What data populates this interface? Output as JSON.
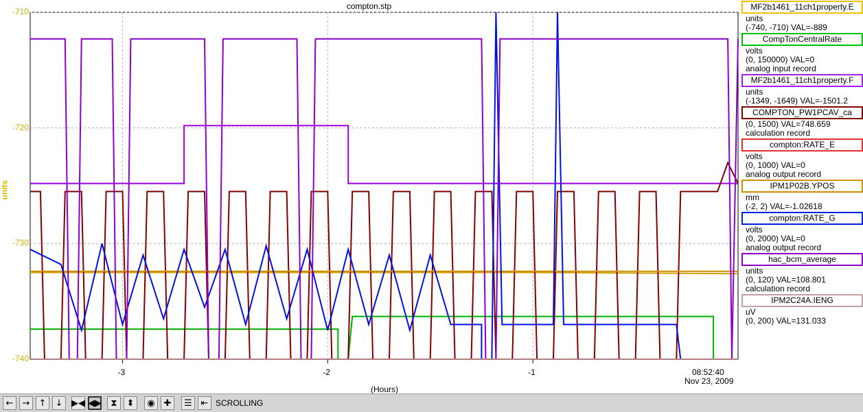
{
  "chart_data": {
    "type": "line",
    "title": "compton.stp",
    "ylabel": "units",
    "xlabel": "(Hours)",
    "xlim": [
      -3.45,
      0.0
    ],
    "ylim": [
      -740,
      -710
    ],
    "yticks": [
      "-710",
      "-720",
      "-730",
      "-740"
    ],
    "xticks": [
      "-3",
      "-2",
      "-1"
    ],
    "grid": true,
    "time_label": "08:52:40",
    "date_label": "Nov 23, 2009",
    "series": [
      {
        "name": "MF2b1461_11ch1property.E",
        "color": "#d4a000",
        "unit": "units",
        "range": "(-740, -710) VAL=-889",
        "points": [
          [
            -3.45,
            -732.5
          ],
          [
            -1.0,
            -732.5
          ],
          [
            0.0,
            -732.6
          ]
        ]
      },
      {
        "name": "CompTonCentralRate",
        "color": "#00b000",
        "unit": "volts",
        "range": "(0, 150000) VAL=0",
        "points": [
          [
            -3.45,
            -737.4
          ],
          [
            -1.95,
            -737.4
          ],
          [
            -1.95,
            -740
          ],
          [
            -1.9,
            -740
          ],
          [
            -1.88,
            -736.3
          ],
          [
            -0.12,
            -736.3
          ],
          [
            -0.12,
            -740
          ],
          [
            0.0,
            -740
          ]
        ]
      },
      {
        "name": "MF2b1461_11ch1property.F",
        "color": "#9a00e0",
        "unit": "units",
        "range": "(-1349, -1649) VAL=-1501.2",
        "points": [
          [
            -3.45,
            -724.8
          ],
          [
            -2.7,
            -724.8
          ],
          [
            -2.7,
            -719.8
          ],
          [
            -1.9,
            -719.8
          ],
          [
            -1.9,
            -724.8
          ],
          [
            0.0,
            -724.8
          ]
        ]
      },
      {
        "name": "COMPTON_PW1PCAV_ca",
        "color": "#800000",
        "unit": "",
        "range": "(0, 1500) VAL=748.659",
        "points": [
          [
            -3.45,
            -725.5
          ],
          [
            -3.4,
            -725.5
          ],
          [
            -3.38,
            -740
          ],
          [
            -3.3,
            -740
          ],
          [
            -3.28,
            -725.5
          ],
          [
            -3.2,
            -725.5
          ],
          [
            -3.18,
            -740
          ],
          [
            -3.1,
            -740
          ],
          [
            -3.08,
            -725.5
          ],
          [
            -3.0,
            -725.5
          ],
          [
            -2.98,
            -740
          ],
          [
            -2.9,
            -740
          ],
          [
            -2.88,
            -725.5
          ],
          [
            -2.8,
            -725.5
          ],
          [
            -2.78,
            -740
          ],
          [
            -2.7,
            -740
          ],
          [
            -2.68,
            -725.5
          ],
          [
            -2.6,
            -725.5
          ],
          [
            -2.58,
            -740
          ],
          [
            -2.5,
            -740
          ],
          [
            -2.48,
            -725.5
          ],
          [
            -2.4,
            -725.5
          ],
          [
            -2.38,
            -740
          ],
          [
            -2.3,
            -740
          ],
          [
            -2.28,
            -725.5
          ],
          [
            -2.2,
            -725.5
          ],
          [
            -2.18,
            -740
          ],
          [
            -2.1,
            -740
          ],
          [
            -2.08,
            -725.5
          ],
          [
            -2.0,
            -725.5
          ],
          [
            -1.98,
            -740
          ],
          [
            -1.9,
            -740
          ],
          [
            -1.88,
            -725.5
          ],
          [
            -1.8,
            -725.5
          ],
          [
            -1.78,
            -740
          ],
          [
            -1.7,
            -740
          ],
          [
            -1.68,
            -725.5
          ],
          [
            -1.6,
            -725.5
          ],
          [
            -1.58,
            -740
          ],
          [
            -1.5,
            -740
          ],
          [
            -1.48,
            -725.5
          ],
          [
            -1.4,
            -725.5
          ],
          [
            -1.38,
            -740
          ],
          [
            -1.3,
            -740
          ],
          [
            -1.28,
            -725.5
          ],
          [
            -1.2,
            -725.5
          ],
          [
            -1.18,
            -740
          ],
          [
            -1.1,
            -740
          ],
          [
            -1.08,
            -725.5
          ],
          [
            -1.0,
            -725.5
          ],
          [
            -0.98,
            -740
          ],
          [
            -0.9,
            -740
          ],
          [
            -0.88,
            -725.5
          ],
          [
            -0.8,
            -725.5
          ],
          [
            -0.78,
            -740
          ],
          [
            -0.7,
            -740
          ],
          [
            -0.68,
            -725.5
          ],
          [
            -0.6,
            -725.5
          ],
          [
            -0.58,
            -740
          ],
          [
            -0.5,
            -740
          ],
          [
            -0.48,
            -725.5
          ],
          [
            -0.4,
            -725.5
          ],
          [
            -0.38,
            -740
          ],
          [
            -0.3,
            -740
          ],
          [
            -0.28,
            -725.5
          ],
          [
            -0.25,
            -725.5
          ],
          [
            -0.1,
            -725.5
          ],
          [
            -0.05,
            -723.0
          ],
          [
            0.0,
            -724.8
          ]
        ]
      },
      {
        "name": "compton:RATE_E",
        "color": "#e02020",
        "unit": "volts",
        "range": "(0, 1000) VAL=0",
        "points": [
          [
            -3.45,
            -740
          ],
          [
            0.0,
            -740
          ]
        ]
      },
      {
        "name": "IPM1P02B.YPOS",
        "color": "#c89000",
        "unit": "mm",
        "range": "(-2, 2) VAL=-1.02618",
        "points": [
          [
            -3.45,
            -732.4
          ],
          [
            -1.0,
            -732.4
          ],
          [
            0.0,
            -732.4
          ]
        ]
      },
      {
        "name": "compton:RATE_G",
        "color": "#0010e0",
        "unit": "volts",
        "range": "(0, 2000) VAL=0",
        "points": [
          [
            -3.45,
            -730.5
          ],
          [
            -3.3,
            -731.8
          ],
          [
            -3.2,
            -737.5
          ],
          [
            -3.1,
            -730.0
          ],
          [
            -3.0,
            -737.0
          ],
          [
            -2.9,
            -731.0
          ],
          [
            -2.8,
            -736.5
          ],
          [
            -2.7,
            -730.5
          ],
          [
            -2.6,
            -735.5
          ],
          [
            -2.5,
            -730.5
          ],
          [
            -2.4,
            -737.0
          ],
          [
            -2.3,
            -730.2
          ],
          [
            -2.2,
            -736.5
          ],
          [
            -2.1,
            -730.5
          ],
          [
            -2.0,
            -737.5
          ],
          [
            -1.9,
            -730.5
          ],
          [
            -1.8,
            -737.0
          ],
          [
            -1.7,
            -731.0
          ],
          [
            -1.6,
            -737.5
          ],
          [
            -1.5,
            -731.0
          ],
          [
            -1.4,
            -737.0
          ],
          [
            -1.35,
            -737.0
          ],
          [
            -1.25,
            -737.0
          ],
          [
            -1.25,
            -740
          ],
          [
            -1.2,
            -740
          ],
          [
            -1.18,
            -710
          ],
          [
            -1.15,
            -737.0
          ],
          [
            -0.9,
            -737.0
          ],
          [
            -0.88,
            -710
          ],
          [
            -0.85,
            -737.0
          ],
          [
            -0.3,
            -737.0
          ],
          [
            -0.28,
            -740
          ],
          [
            0.0,
            -740
          ]
        ]
      },
      {
        "name": "hac_bcm_average",
        "color": "#8a00c8",
        "unit": "units",
        "range": "(0, 120) VAL=108.801",
        "extra": "calculation record",
        "points": [
          [
            -3.45,
            -712.3
          ],
          [
            -3.28,
            -712.3
          ],
          [
            -3.26,
            -740
          ],
          [
            -3.22,
            -740
          ],
          [
            -3.2,
            -712.3
          ],
          [
            -3.05,
            -712.3
          ],
          [
            -3.03,
            -740
          ],
          [
            -2.98,
            -740
          ],
          [
            -2.96,
            -712.3
          ],
          [
            -2.6,
            -712.3
          ],
          [
            -2.58,
            -740
          ],
          [
            -2.53,
            -740
          ],
          [
            -2.51,
            -712.3
          ],
          [
            -2.15,
            -712.3
          ],
          [
            -2.13,
            -740
          ],
          [
            -2.08,
            -740
          ],
          [
            -2.06,
            -712.3
          ],
          [
            -1.25,
            -712.3
          ],
          [
            -1.23,
            -740
          ],
          [
            -1.18,
            -740
          ],
          [
            -1.16,
            -712.3
          ],
          [
            -0.05,
            -712.3
          ],
          [
            -0.03,
            -740
          ],
          [
            0.0,
            -712.3
          ]
        ]
      },
      {
        "name": "IPM2C24A.IENG",
        "color": "#b08080",
        "unit": "uV",
        "range": "(0, 200) VAL=131.033",
        "points": [
          [
            -3.45,
            -740
          ],
          [
            0.0,
            -740
          ]
        ]
      }
    ]
  },
  "legend": [
    {
      "name": "MF2b1461_11ch1property.E",
      "color": "#f0c000",
      "lines": [
        "units",
        "(-740, -710) VAL=-889"
      ]
    },
    {
      "name": "CompTonCentralRate",
      "color": "#00c000",
      "lines": [
        "volts",
        "(0, 150000) VAL=0",
        "analog input record"
      ]
    },
    {
      "name": "MF2b1461_11ch1property.F",
      "color": "#a020f0",
      "lines": [
        "units",
        "(-1349, -1649) VAL=-1501.2"
      ]
    },
    {
      "name": "COMPTON_PW1PCAV_ca",
      "color": "#800000",
      "lines": [
        "(0, 1500) VAL=748.659",
        "calculation record"
      ]
    },
    {
      "name": "compton:RATE_E",
      "color": "#e03030",
      "lines": [
        "volts",
        "(0, 1000) VAL=0",
        "analog output record"
      ]
    },
    {
      "name": "IPM1P02B.YPOS",
      "color": "#d09000",
      "lines": [
        "mm",
        "(-2, 2) VAL=-1.02618"
      ]
    },
    {
      "name": "compton:RATE_G",
      "color": "#0020e0",
      "lines": [
        "volts",
        "(0, 2000) VAL=0",
        "analog output record"
      ]
    },
    {
      "name": "hac_bcm_average",
      "color": "#8a00c8",
      "lines": [
        "units",
        "(0, 120) VAL=108.801",
        "calculation record"
      ]
    },
    {
      "name": "IPM2C24A.IENG",
      "color": "#c0a0a0",
      "lines": [
        "uV",
        "(0, 200) VAL=131.033"
      ]
    }
  ],
  "toolbar": {
    "status": "SCROLLING",
    "buttons": [
      {
        "icon": "arrow-left-icon",
        "glyph": "←"
      },
      {
        "icon": "arrow-right-icon",
        "glyph": "→"
      },
      {
        "icon": "arrow-up-icon",
        "glyph": "↑"
      },
      {
        "icon": "arrow-down-icon",
        "glyph": "↓"
      },
      {
        "icon": "zoom-x-in-icon",
        "glyph": "▶◀"
      },
      {
        "icon": "zoom-x-out-icon",
        "glyph": "◀▶"
      },
      {
        "icon": "zoom-y-in-icon",
        "glyph": "⧗"
      },
      {
        "icon": "zoom-y-out-icon",
        "glyph": "⬍"
      },
      {
        "icon": "autoscale-icon",
        "glyph": "◉"
      },
      {
        "icon": "crosshair-icon",
        "glyph": "✚"
      },
      {
        "icon": "config-icon",
        "glyph": "☰"
      },
      {
        "icon": "scroll-mode-icon",
        "glyph": "⇤"
      }
    ]
  }
}
